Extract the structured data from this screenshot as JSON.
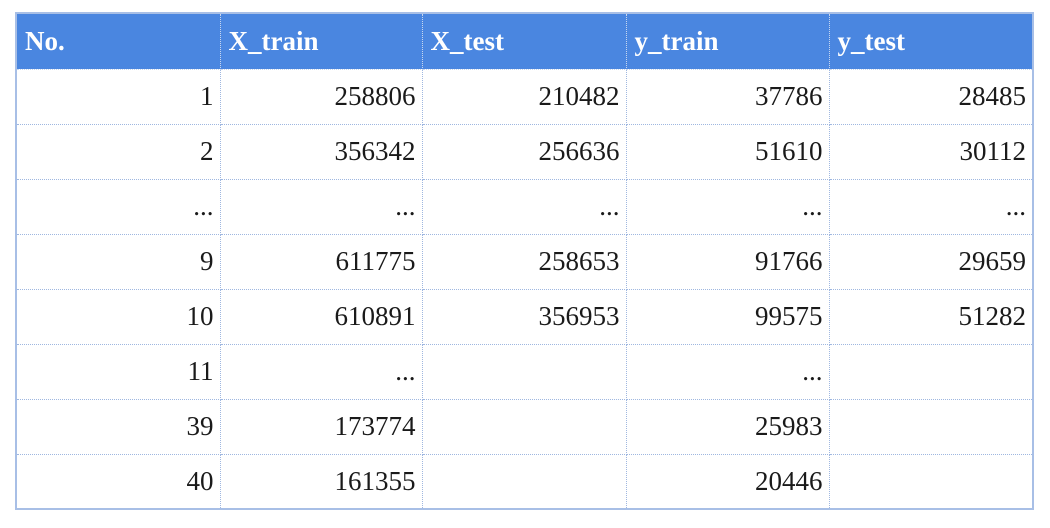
{
  "table": {
    "headers": [
      "No.",
      "X_train",
      "X_test",
      "y_train",
      "y_test"
    ],
    "rows": [
      [
        "1",
        "258806",
        "210482",
        "37786",
        "28485"
      ],
      [
        "2",
        "356342",
        "256636",
        "51610",
        "30112"
      ],
      [
        "...",
        "...",
        "...",
        "...",
        "..."
      ],
      [
        "9",
        "611775",
        "258653",
        "91766",
        "29659"
      ],
      [
        "10",
        "610891",
        "356953",
        "99575",
        "51282"
      ],
      [
        "11",
        "...",
        "",
        "...",
        ""
      ],
      [
        "39",
        "173774",
        "",
        "25983",
        ""
      ],
      [
        "40",
        "161355",
        "",
        "20446",
        ""
      ]
    ]
  }
}
